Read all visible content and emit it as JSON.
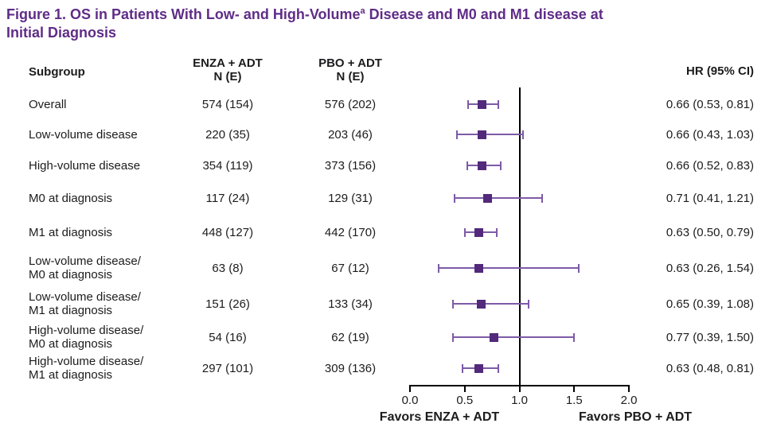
{
  "figure": {
    "title_part1": "Figure 1. OS in Patients With Low- and High-Volume",
    "title_sup": "a",
    "title_part2": " Disease and M0 and M1 disease at",
    "title_line2": "Initial Diagnosis"
  },
  "colors": {
    "title_purple": "#5f2c87",
    "marker_purple": "#52297b",
    "ci_purple": "#7d5ba6",
    "text_black": "#1c1c1e",
    "axis_black": "#000000"
  },
  "table": {
    "header": {
      "subgroup": "Subgroup",
      "enza_line1": "ENZA + ADT",
      "enza_line2": "N (E)",
      "pbo_line1": "PBO + ADT",
      "pbo_line2": "N (E)",
      "hr": "HR (95% CI)"
    },
    "rows": [
      {
        "label1": "Overall",
        "enza": "574 (154)",
        "pbo": "576 (202)",
        "hr": "0.66 (0.53, 0.81)"
      },
      {
        "label1": "Low-volume disease",
        "enza": "220 (35)",
        "pbo": "203 (46)",
        "hr": "0.66 (0.43, 1.03)"
      },
      {
        "label1": "High-volume disease",
        "enza": "354 (119)",
        "pbo": "373 (156)",
        "hr": "0.66 (0.52, 0.83)"
      },
      {
        "label1": "M0 at diagnosis",
        "enza": "117 (24)",
        "pbo": "129 (31)",
        "hr": "0.71 (0.41, 1.21)"
      },
      {
        "label1": "M1 at diagnosis",
        "enza": "448 (127)",
        "pbo": "442 (170)",
        "hr": "0.63 (0.50, 0.79)"
      },
      {
        "label1": "Low-volume disease/",
        "label2": "M0 at diagnosis",
        "enza": "63 (8)",
        "pbo": "67 (12)",
        "hr": "0.63 (0.26, 1.54)"
      },
      {
        "label1": "Low-volume disease/",
        "label2": "M1 at diagnosis",
        "enza": "151 (26)",
        "pbo": "133 (34)",
        "hr": "0.65 (0.39, 1.08)"
      },
      {
        "label1": "High-volume disease/",
        "label2": "M0 at diagnosis",
        "enza": "54 (16)",
        "pbo": "62 (19)",
        "hr": "0.77 (0.39, 1.50)"
      },
      {
        "label1": "High-volume disease/",
        "label2": "M1 at diagnosis",
        "enza": "297 (101)",
        "pbo": "309 (136)",
        "hr": "0.63 (0.48, 0.81)"
      }
    ]
  },
  "chart_data": {
    "type": "forest",
    "title": "OS in Patients With Low- and High-Volume Disease and M0 and M1 disease at Initial Diagnosis",
    "xlim": [
      0.0,
      2.0
    ],
    "x_ticks": [
      0.0,
      0.5,
      1.0,
      1.5,
      2.0
    ],
    "x_tick_labels": [
      "0.0",
      "0.5",
      "1.0",
      "1.5",
      "2.0"
    ],
    "reference_line": 1.0,
    "xlabel_left": "Favors ENZA + ADT",
    "xlabel_right": "Favors PBO + ADT",
    "series": [
      {
        "name": "Overall",
        "hr": 0.66,
        "ci_low": 0.53,
        "ci_high": 0.81
      },
      {
        "name": "Low-volume disease",
        "hr": 0.66,
        "ci_low": 0.43,
        "ci_high": 1.03
      },
      {
        "name": "High-volume disease",
        "hr": 0.66,
        "ci_low": 0.52,
        "ci_high": 0.83
      },
      {
        "name": "M0 at diagnosis",
        "hr": 0.71,
        "ci_low": 0.41,
        "ci_high": 1.21
      },
      {
        "name": "M1 at diagnosis",
        "hr": 0.63,
        "ci_low": 0.5,
        "ci_high": 0.79
      },
      {
        "name": "Low-volume disease/M0 at diagnosis",
        "hr": 0.63,
        "ci_low": 0.26,
        "ci_high": 1.54
      },
      {
        "name": "Low-volume disease/M1 at diagnosis",
        "hr": 0.65,
        "ci_low": 0.39,
        "ci_high": 1.08
      },
      {
        "name": "High-volume disease/M0 at diagnosis",
        "hr": 0.77,
        "ci_low": 0.39,
        "ci_high": 1.5
      },
      {
        "name": "High-volume disease/M1 at diagnosis",
        "hr": 0.63,
        "ci_low": 0.48,
        "ci_high": 0.81
      }
    ]
  }
}
